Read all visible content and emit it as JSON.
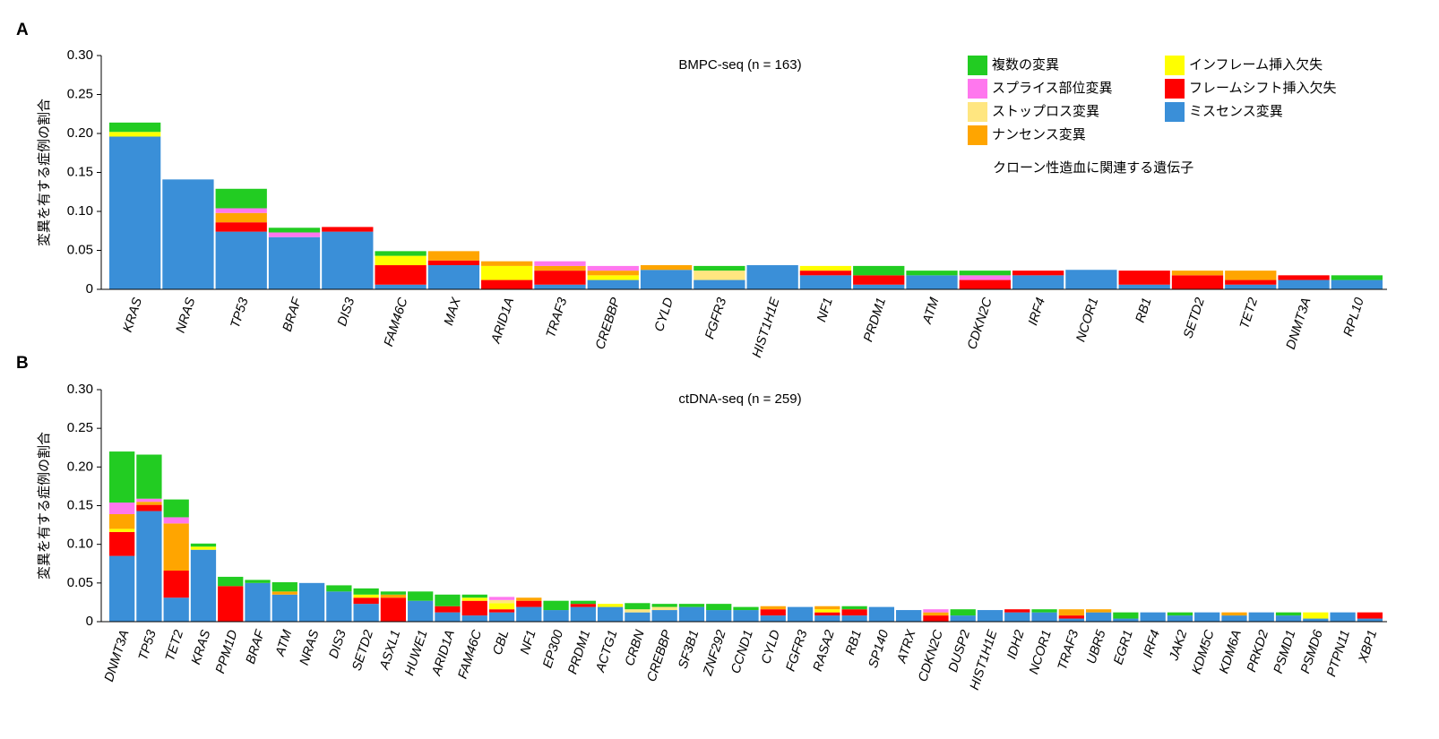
{
  "chart_data": [
    {
      "type": "stacked_bar",
      "panel_label": "A",
      "title": "BMPC-seq (n = 163)",
      "y_label": "変異を有する症例の割合",
      "annotation": "クローン性造血に関連する遺伝子",
      "annotation_color": "#1f7fd0",
      "categories": [
        "KRAS",
        "NRAS",
        "TP53",
        "BRAF",
        "DIS3",
        "FAM46C",
        "MAX",
        "ARID1A",
        "TRAF3",
        "CREBBP",
        "CYLD",
        "FGFR3",
        "HIST1H1E",
        "NF1",
        "PRDM1",
        "ATM",
        "CDKN2C",
        "IRF4",
        "NCOR1",
        "RB1",
        "SETD2",
        "TET2",
        "DNMT3A",
        "RPL10"
      ],
      "category_colors": [
        "#000",
        "#000",
        "#000",
        "#000",
        "#000",
        "#000",
        "#000",
        "#000",
        "#000",
        "#000",
        "#000",
        "#000",
        "#000",
        "#000",
        "#000",
        "#000",
        "#000",
        "#000",
        "#000",
        "#000",
        "#000",
        "#1f7fd0",
        "#1f7fd0",
        "#000"
      ],
      "series": [
        {
          "name": "ミスセンス変異",
          "color": "#3a8fd8",
          "values": [
            0.196,
            0.141,
            0.074,
            0.067,
            0.074,
            0.006,
            0.031,
            0,
            0.006,
            0.012,
            0.025,
            0.012,
            0.031,
            0.018,
            0.006,
            0.018,
            0,
            0.018,
            0.025,
            0.006,
            0,
            0.006,
            0.012,
            0.012
          ]
        },
        {
          "name": "フレームシフト挿入欠失",
          "color": "#ff0000",
          "values": [
            0,
            0,
            0.012,
            0,
            0.006,
            0.025,
            0.006,
            0.012,
            0.018,
            0,
            0,
            0,
            0,
            0.006,
            0.012,
            0,
            0.012,
            0.006,
            0,
            0.018,
            0.018,
            0.006,
            0.006,
            0
          ]
        },
        {
          "name": "インフレーム挿入欠失",
          "color": "#ffff00",
          "values": [
            0.006,
            0,
            0,
            0,
            0,
            0.012,
            0,
            0.018,
            0,
            0.006,
            0,
            0,
            0,
            0.006,
            0,
            0,
            0,
            0,
            0,
            0,
            0,
            0,
            0,
            0
          ]
        },
        {
          "name": "ナンセンス変異",
          "color": "#ffa500",
          "values": [
            0,
            0,
            0.012,
            0,
            0,
            0,
            0.012,
            0.006,
            0.006,
            0.006,
            0.006,
            0,
            0,
            0,
            0,
            0,
            0,
            0,
            0,
            0,
            0.006,
            0.012,
            0,
            0
          ]
        },
        {
          "name": "ストップロス変異",
          "color": "#ffe680",
          "values": [
            0,
            0,
            0,
            0,
            0,
            0,
            0,
            0,
            0,
            0,
            0,
            0.012,
            0,
            0,
            0,
            0,
            0,
            0,
            0,
            0,
            0,
            0,
            0,
            0
          ]
        },
        {
          "name": "スプライス部位変異",
          "color": "#ff77ee",
          "values": [
            0,
            0,
            0.006,
            0.006,
            0,
            0,
            0,
            0,
            0.006,
            0.006,
            0,
            0,
            0,
            0,
            0,
            0,
            0.006,
            0,
            0,
            0,
            0,
            0,
            0,
            0
          ]
        },
        {
          "name": "複数の変異",
          "color": "#22cc22",
          "values": [
            0.012,
            0,
            0.025,
            0.006,
            0,
            0.006,
            0,
            0,
            0,
            0,
            0,
            0.006,
            0,
            0,
            0.012,
            0.006,
            0.006,
            0,
            0,
            0,
            0,
            0,
            0,
            0.006
          ]
        }
      ],
      "ylim": [
        0,
        0.3
      ],
      "yticks": [
        0,
        0.05,
        {
          "value": 0.1,
          "label": "0.10"
        },
        0.15,
        {
          "value": 0.2,
          "label": "0.20"
        },
        0.25,
        {
          "value": 0.3,
          "label": "0.30"
        }
      ]
    },
    {
      "type": "stacked_bar",
      "panel_label": "B",
      "title": "ctDNA-seq (n = 259)",
      "y_label": "変異を有する症例の割合",
      "categories": [
        "DNMT3A",
        "TP53",
        "TET2",
        "KRAS",
        "PPM1D",
        "BRAF",
        "ATM",
        "NRAS",
        "DIS3",
        "SETD2",
        "ASXL1",
        "HUWE1",
        "ARID1A",
        "FAM46C",
        "CBL",
        "NF1",
        "EP300",
        "PRDM1",
        "ACTG1",
        "CRBN",
        "CREBBP",
        "SF3B1",
        "ZNF292",
        "CCND1",
        "CYLD",
        "FGFR3",
        "RASA2",
        "RB1",
        "SP140",
        "ATRX",
        "CDKN2C",
        "DUSP2",
        "HIST1H1E",
        "IDH2",
        "NCOR1",
        "TRAF3",
        "UBR5",
        "EGR1",
        "IRF4",
        "JAK2",
        "KDM5C",
        "KDM6A",
        "PRKD2",
        "PSMD1",
        "PSMD6",
        "PTPN11",
        "XBP1"
      ],
      "category_colors": [
        "#1f7fd0",
        "#000",
        "#1f7fd0",
        "#000",
        "#1f7fd0",
        "#000",
        "#000",
        "#000",
        "#000",
        "#000",
        "#1f7fd0",
        "#000",
        "#000",
        "#000",
        "#000",
        "#000",
        "#000",
        "#000",
        "#000",
        "#000",
        "#000",
        "#1f7fd0",
        "#000",
        "#000",
        "#000",
        "#000",
        "#000",
        "#000",
        "#000",
        "#000",
        "#000",
        "#000",
        "#000",
        "#000",
        "#000",
        "#000",
        "#000",
        "#000",
        "#000",
        "#1f7fd0",
        "#000",
        "#000",
        "#000",
        "#000",
        "#000",
        "#000",
        "#000"
      ],
      "series": [
        {
          "color": "#3a8fd8",
          "values": [
            0.085,
            0.143,
            0.031,
            0.093,
            0,
            0.05,
            0.035,
            0.05,
            0.039,
            0.023,
            0,
            0.027,
            0.012,
            0.008,
            0.012,
            0.019,
            0.015,
            0.019,
            0.019,
            0.012,
            0.015,
            0.019,
            0.015,
            0.015,
            0.008,
            0.019,
            0.008,
            0.008,
            0.019,
            0.015,
            0,
            0.008,
            0.015,
            0.012,
            0.012,
            0.004,
            0.012,
            0.004,
            0.012,
            0.008,
            0.012,
            0.008,
            0.012,
            0.008,
            0.004,
            0.012,
            0.004
          ]
        },
        {
          "color": "#ff0000",
          "values": [
            0.031,
            0.008,
            0.035,
            0,
            0.046,
            0,
            0,
            0,
            0,
            0.008,
            0.031,
            0,
            0.008,
            0.019,
            0.004,
            0.008,
            0,
            0.004,
            0,
            0,
            0,
            0,
            0,
            0,
            0.008,
            0,
            0.004,
            0.008,
            0,
            0,
            0.008,
            0,
            0,
            0.004,
            0,
            0.004,
            0,
            0,
            0,
            0,
            0,
            0,
            0,
            0,
            0,
            0,
            0.008
          ]
        },
        {
          "color": "#ffff00",
          "values": [
            0.004,
            0,
            0,
            0.004,
            0,
            0,
            0,
            0,
            0,
            0.004,
            0,
            0,
            0,
            0.004,
            0.008,
            0,
            0,
            0,
            0.004,
            0,
            0,
            0,
            0,
            0,
            0,
            0,
            0.004,
            0,
            0,
            0,
            0,
            0,
            0,
            0,
            0,
            0,
            0,
            0,
            0,
            0,
            0,
            0,
            0,
            0,
            0.008,
            0,
            0
          ]
        },
        {
          "color": "#ffa500",
          "values": [
            0.019,
            0.004,
            0.061,
            0,
            0,
            0,
            0.004,
            0,
            0,
            0,
            0.004,
            0,
            0,
            0,
            0,
            0.004,
            0,
            0,
            0,
            0,
            0,
            0,
            0,
            0,
            0.004,
            0,
            0.004,
            0,
            0,
            0,
            0.004,
            0,
            0,
            0,
            0,
            0.008,
            0.004,
            0,
            0,
            0,
            0,
            0.004,
            0,
            0,
            0,
            0,
            0
          ]
        },
        {
          "color": "#ffe680",
          "values": [
            0,
            0,
            0,
            0,
            0,
            0,
            0,
            0,
            0,
            0,
            0,
            0,
            0,
            0,
            0.004,
            0,
            0,
            0,
            0,
            0.004,
            0.004,
            0,
            0,
            0,
            0,
            0,
            0,
            0,
            0,
            0,
            0,
            0,
            0,
            0,
            0,
            0,
            0,
            0,
            0,
            0,
            0,
            0,
            0,
            0,
            0,
            0,
            0
          ]
        },
        {
          "color": "#ff77ee",
          "values": [
            0.015,
            0.004,
            0.008,
            0,
            0,
            0,
            0,
            0,
            0,
            0,
            0,
            0,
            0,
            0,
            0.004,
            0,
            0,
            0,
            0,
            0,
            0,
            0,
            0,
            0,
            0,
            0,
            0,
            0,
            0,
            0,
            0.004,
            0,
            0,
            0,
            0,
            0,
            0,
            0,
            0,
            0,
            0,
            0,
            0,
            0,
            0,
            0,
            0
          ]
        },
        {
          "color": "#22cc22",
          "values": [
            0.066,
            0.057,
            0.023,
            0.004,
            0.012,
            0.004,
            0.012,
            0,
            0.008,
            0.008,
            0.004,
            0.012,
            0.015,
            0.004,
            0,
            0,
            0.012,
            0.004,
            0,
            0.008,
            0.004,
            0.004,
            0.008,
            0.004,
            0,
            0,
            0,
            0.004,
            0,
            0,
            0,
            0.008,
            0,
            0,
            0.004,
            0,
            0,
            0.008,
            0,
            0.004,
            0,
            0,
            0,
            0.004,
            0,
            0,
            0
          ]
        }
      ],
      "ylim": [
        0,
        0.3
      ],
      "yticks": [
        0,
        0.05,
        {
          "value": 0.1,
          "label": "0.10"
        },
        0.15,
        {
          "value": 0.2,
          "label": "0.20"
        },
        0.25,
        {
          "value": 0.3,
          "label": "0.30"
        }
      ]
    }
  ]
}
